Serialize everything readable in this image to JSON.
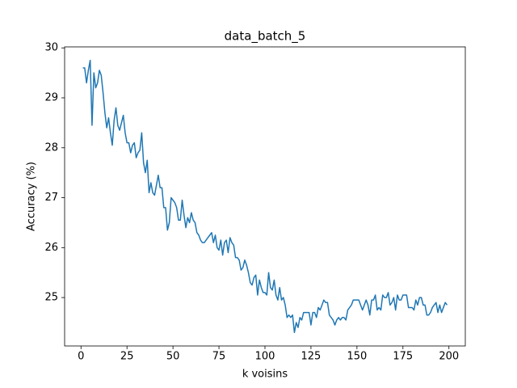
{
  "chart_data": {
    "type": "line",
    "title": "data_batch_5",
    "xlabel": "k voisins",
    "ylabel": "Accuracy (%)",
    "x": [
      1,
      2,
      3,
      4,
      5,
      6,
      7,
      8,
      9,
      10,
      11,
      12,
      13,
      14,
      15,
      16,
      17,
      18,
      19,
      20,
      21,
      22,
      23,
      24,
      25,
      26,
      27,
      28,
      29,
      30,
      31,
      32,
      33,
      34,
      35,
      36,
      37,
      38,
      39,
      40,
      41,
      42,
      43,
      44,
      45,
      46,
      47,
      48,
      49,
      50,
      51,
      52,
      53,
      54,
      55,
      56,
      57,
      58,
      59,
      60,
      61,
      62,
      63,
      64,
      65,
      66,
      67,
      68,
      69,
      70,
      71,
      72,
      73,
      74,
      75,
      76,
      77,
      78,
      79,
      80,
      81,
      82,
      83,
      84,
      85,
      86,
      87,
      88,
      89,
      90,
      91,
      92,
      93,
      94,
      95,
      96,
      97,
      98,
      99,
      100,
      101,
      102,
      103,
      104,
      105,
      106,
      107,
      108,
      109,
      110,
      111,
      112,
      113,
      114,
      115,
      116,
      117,
      118,
      119,
      120,
      121,
      122,
      123,
      124,
      125,
      126,
      127,
      128,
      129,
      130,
      131,
      132,
      133,
      134,
      135,
      136,
      137,
      138,
      139,
      140,
      141,
      142,
      143,
      144,
      145,
      146,
      147,
      148,
      149,
      150,
      151,
      152,
      153,
      154,
      155,
      156,
      157,
      158,
      159,
      160,
      161,
      162,
      163,
      164,
      165,
      166,
      167,
      168,
      169,
      170,
      171,
      172,
      173,
      174,
      175,
      176,
      177,
      178,
      179,
      180,
      181,
      182,
      183,
      184,
      185,
      186,
      187,
      188,
      189,
      190,
      191,
      192,
      193,
      194,
      195,
      196,
      197,
      198,
      199
    ],
    "series": [
      {
        "name": "accuracy",
        "color": "#1f77b4",
        "values": [
          29.6,
          29.6,
          29.3,
          29.55,
          29.75,
          28.45,
          29.5,
          29.2,
          29.3,
          29.55,
          29.45,
          29.1,
          28.7,
          28.4,
          28.6,
          28.3,
          28.05,
          28.55,
          28.8,
          28.45,
          28.35,
          28.5,
          28.65,
          28.3,
          28.1,
          28.1,
          27.9,
          28.05,
          28.1,
          27.8,
          27.9,
          27.95,
          28.3,
          27.7,
          27.5,
          27.75,
          27.1,
          27.3,
          27.1,
          27.05,
          27.25,
          27.45,
          27.2,
          27.2,
          26.8,
          26.8,
          26.35,
          26.5,
          27.0,
          26.95,
          26.9,
          26.8,
          26.55,
          26.55,
          26.95,
          26.65,
          26.4,
          26.6,
          26.5,
          26.7,
          26.55,
          26.5,
          26.3,
          26.25,
          26.15,
          26.1,
          26.1,
          26.15,
          26.2,
          26.25,
          26.3,
          26.1,
          26.25,
          26.0,
          25.95,
          26.15,
          25.85,
          26.1,
          26.15,
          25.9,
          26.2,
          26.1,
          26.05,
          25.8,
          25.8,
          25.75,
          25.55,
          25.6,
          25.75,
          25.65,
          25.5,
          25.3,
          25.25,
          25.4,
          25.45,
          25.05,
          25.35,
          25.2,
          25.1,
          25.1,
          25.05,
          25.5,
          25.2,
          25.15,
          25.35,
          25.05,
          24.95,
          25.2,
          24.95,
          25.0,
          24.85,
          24.6,
          24.65,
          24.6,
          24.65,
          24.3,
          24.5,
          24.4,
          24.6,
          24.55,
          24.7,
          24.7,
          24.7,
          24.7,
          24.45,
          24.7,
          24.7,
          24.6,
          24.8,
          24.75,
          24.85,
          24.95,
          24.9,
          24.9,
          24.65,
          24.6,
          24.55,
          24.45,
          24.55,
          24.6,
          24.55,
          24.6,
          24.6,
          24.55,
          24.75,
          24.8,
          24.85,
          24.95,
          24.95,
          24.95,
          24.95,
          24.85,
          24.75,
          24.85,
          24.95,
          24.85,
          24.65,
          24.95,
          24.95,
          25.05,
          24.75,
          24.8,
          24.75,
          25.05,
          25.0,
          25.0,
          25.1,
          24.85,
          24.9,
          25.0,
          24.75,
          25.05,
          24.95,
          24.95,
          25.05,
          25.05,
          25.05,
          24.8,
          24.8,
          24.8,
          24.75,
          24.95,
          24.85,
          25.0,
          25.0,
          24.85,
          24.85,
          24.65,
          24.65,
          24.7,
          24.8,
          24.85,
          24.9,
          24.7,
          24.85,
          24.7,
          24.8,
          24.9,
          24.85
        ]
      }
    ],
    "xlim": [
      -8.9,
      208.9
    ],
    "xticks": [
      0,
      25,
      50,
      75,
      100,
      125,
      150,
      175,
      200
    ],
    "ylim": [
      24.03,
      30.02
    ],
    "yticks": [
      25,
      26,
      27,
      28,
      29,
      30
    ]
  }
}
